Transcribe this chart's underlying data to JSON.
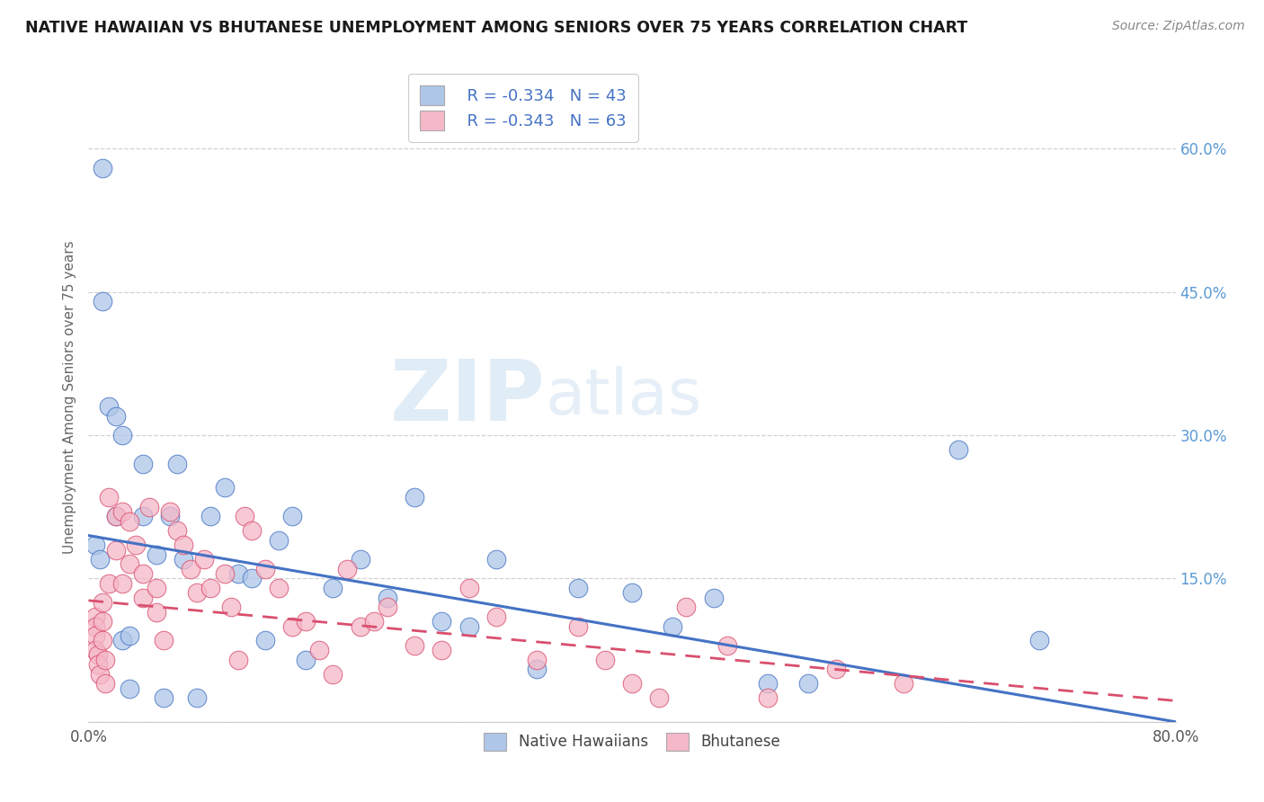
{
  "title": "NATIVE HAWAIIAN VS BHUTANESE UNEMPLOYMENT AMONG SENIORS OVER 75 YEARS CORRELATION CHART",
  "source": "Source: ZipAtlas.com",
  "ylabel": "Unemployment Among Seniors over 75 years",
  "watermark_zip": "ZIP",
  "watermark_atlas": "atlas",
  "legend_r1": "R = -0.334",
  "legend_n1": "N = 43",
  "legend_r2": "R = -0.343",
  "legend_n2": "N = 63",
  "blue_color": "#aec6e8",
  "pink_color": "#f5b8c8",
  "blue_line_color": "#4472c4",
  "pink_line_color": "#d94f6e",
  "right_axis_color": "#5b9bd5",
  "xlim": [
    0,
    0.8
  ],
  "ylim": [
    0,
    0.68
  ],
  "yticks": [
    0.0,
    0.15,
    0.3,
    0.45,
    0.6
  ],
  "ytick_labels": [
    "",
    "15.0%",
    "30.0%",
    "45.0%",
    "60.0%"
  ],
  "blue_x": [
    0.005,
    0.008,
    0.01,
    0.01,
    0.015,
    0.02,
    0.02,
    0.025,
    0.025,
    0.03,
    0.03,
    0.04,
    0.04,
    0.05,
    0.055,
    0.06,
    0.065,
    0.07,
    0.08,
    0.09,
    0.1,
    0.11,
    0.12,
    0.13,
    0.14,
    0.15,
    0.16,
    0.18,
    0.2,
    0.22,
    0.24,
    0.26,
    0.28,
    0.3,
    0.33,
    0.36,
    0.4,
    0.43,
    0.46,
    0.5,
    0.53,
    0.64,
    0.7
  ],
  "blue_y": [
    0.185,
    0.17,
    0.58,
    0.44,
    0.33,
    0.32,
    0.215,
    0.3,
    0.085,
    0.09,
    0.035,
    0.215,
    0.27,
    0.175,
    0.025,
    0.215,
    0.27,
    0.17,
    0.025,
    0.215,
    0.245,
    0.155,
    0.15,
    0.085,
    0.19,
    0.215,
    0.065,
    0.14,
    0.17,
    0.13,
    0.235,
    0.105,
    0.1,
    0.17,
    0.055,
    0.14,
    0.135,
    0.1,
    0.13,
    0.04,
    0.04,
    0.285,
    0.085
  ],
  "pink_x": [
    0.005,
    0.005,
    0.005,
    0.005,
    0.007,
    0.007,
    0.008,
    0.01,
    0.01,
    0.01,
    0.012,
    0.012,
    0.015,
    0.015,
    0.02,
    0.02,
    0.025,
    0.025,
    0.03,
    0.03,
    0.035,
    0.04,
    0.04,
    0.045,
    0.05,
    0.05,
    0.055,
    0.06,
    0.065,
    0.07,
    0.075,
    0.08,
    0.085,
    0.09,
    0.1,
    0.105,
    0.11,
    0.115,
    0.12,
    0.13,
    0.14,
    0.15,
    0.16,
    0.17,
    0.18,
    0.19,
    0.2,
    0.21,
    0.22,
    0.24,
    0.26,
    0.28,
    0.3,
    0.33,
    0.36,
    0.38,
    0.4,
    0.42,
    0.44,
    0.47,
    0.5,
    0.55,
    0.6
  ],
  "pink_y": [
    0.11,
    0.1,
    0.09,
    0.075,
    0.07,
    0.06,
    0.05,
    0.125,
    0.105,
    0.085,
    0.065,
    0.04,
    0.235,
    0.145,
    0.215,
    0.18,
    0.145,
    0.22,
    0.21,
    0.165,
    0.185,
    0.155,
    0.13,
    0.225,
    0.14,
    0.115,
    0.085,
    0.22,
    0.2,
    0.185,
    0.16,
    0.135,
    0.17,
    0.14,
    0.155,
    0.12,
    0.065,
    0.215,
    0.2,
    0.16,
    0.14,
    0.1,
    0.105,
    0.075,
    0.05,
    0.16,
    0.1,
    0.105,
    0.12,
    0.08,
    0.075,
    0.14,
    0.11,
    0.065,
    0.1,
    0.065,
    0.04,
    0.025,
    0.12,
    0.08,
    0.025,
    0.055,
    0.04
  ],
  "blue_trend_x": [
    0.0,
    0.8
  ],
  "blue_trend_y": [
    0.195,
    0.0
  ],
  "pink_trend_x": [
    0.0,
    0.8
  ],
  "pink_trend_y": [
    0.127,
    0.022
  ]
}
